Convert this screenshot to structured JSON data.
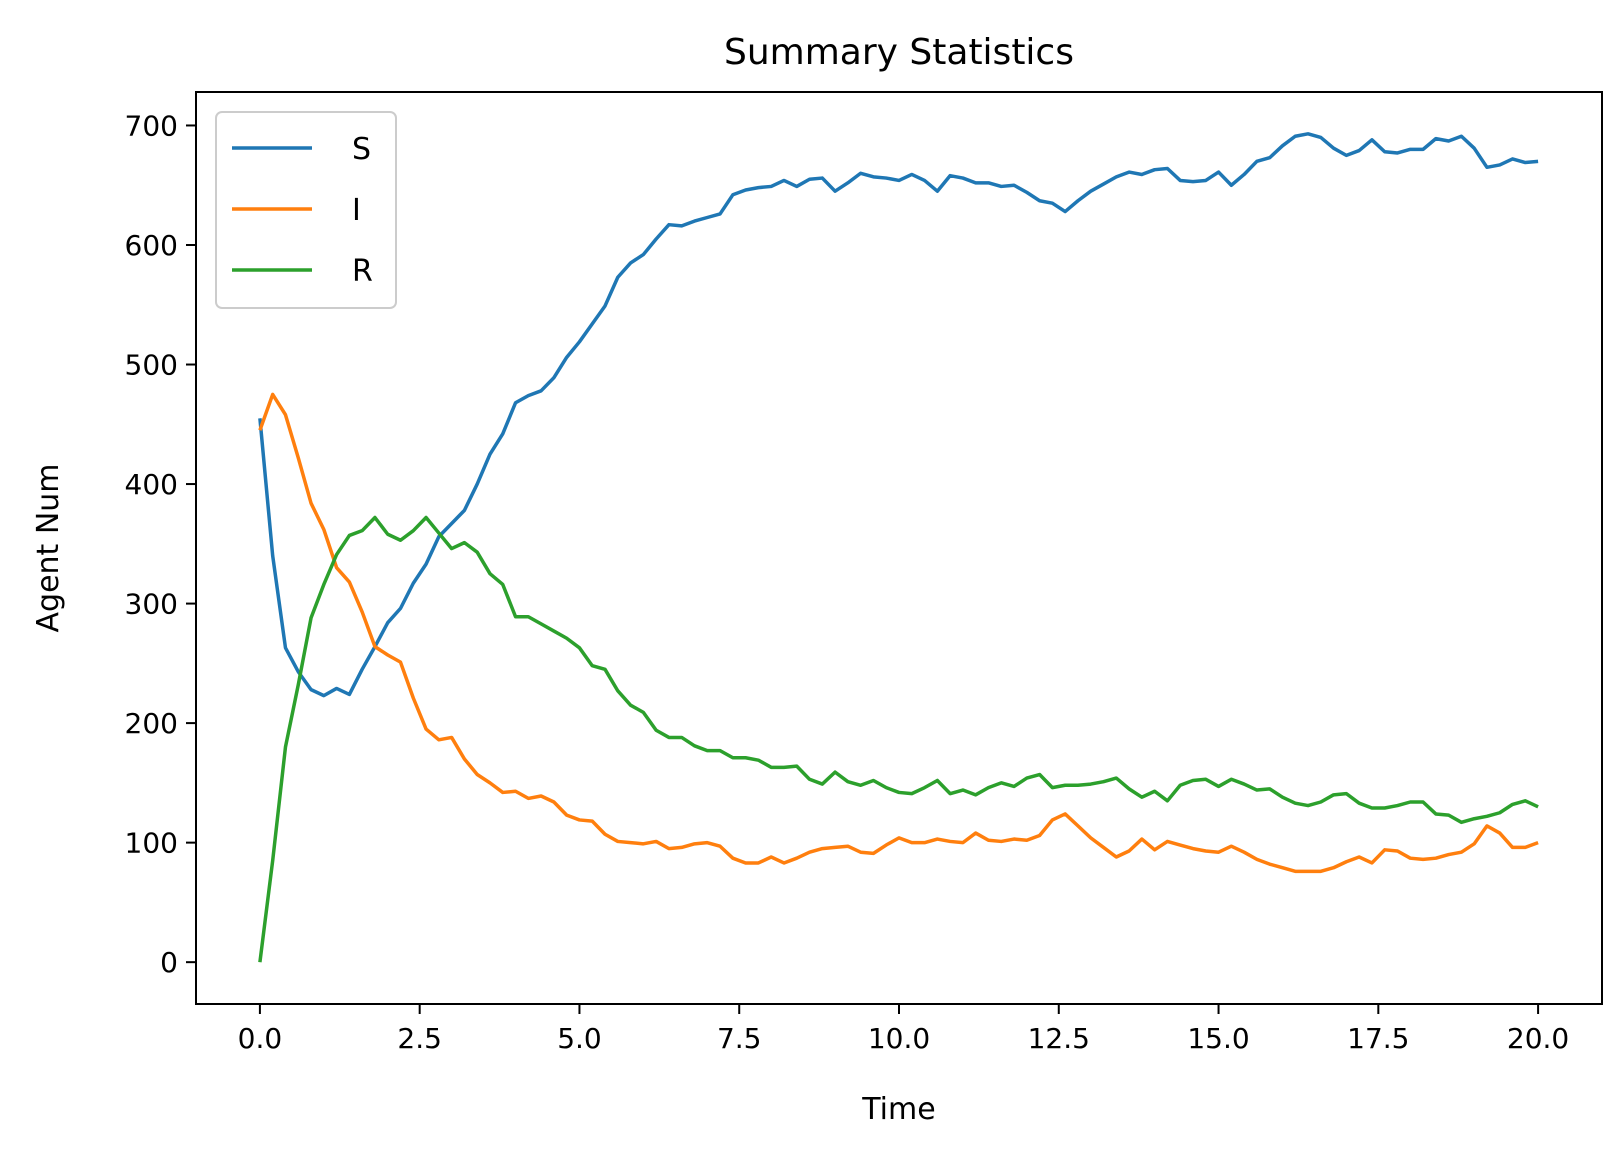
{
  "chart_data": {
    "type": "line",
    "title": "Summary Statistics",
    "xlabel": "Time",
    "ylabel": "Agent Num",
    "xlim": [
      -1.0,
      21.0
    ],
    "ylim": [
      -35,
      728
    ],
    "xticks": [
      0.0,
      2.5,
      5.0,
      7.5,
      10.0,
      12.5,
      15.0,
      17.5,
      20.0
    ],
    "xtick_labels": [
      "0.0",
      "2.5",
      "5.0",
      "7.5",
      "10.0",
      "12.5",
      "15.0",
      "17.5",
      "20.0"
    ],
    "yticks": [
      0,
      100,
      200,
      300,
      400,
      500,
      600,
      700
    ],
    "ytick_labels": [
      "0",
      "100",
      "200",
      "300",
      "400",
      "500",
      "600",
      "700"
    ],
    "grid": false,
    "legend": {
      "position": "upper-left",
      "entries": [
        "S",
        "I",
        "R"
      ]
    },
    "x": [
      0.0,
      0.2,
      0.4,
      0.6,
      0.8,
      1.0,
      1.2,
      1.4,
      1.6,
      1.8,
      2.0,
      2.2,
      2.4,
      2.6,
      2.8,
      3.0,
      3.2,
      3.4,
      3.6,
      3.8,
      4.0,
      4.2,
      4.4,
      4.6,
      4.8,
      5.0,
      5.2,
      5.4,
      5.6,
      5.8,
      6.0,
      6.2,
      6.4,
      6.6,
      6.8,
      7.0,
      7.2,
      7.4,
      7.6,
      7.8,
      8.0,
      8.2,
      8.4,
      8.6,
      8.8,
      9.0,
      9.2,
      9.4,
      9.6,
      9.8,
      10.0,
      10.2,
      10.4,
      10.6,
      10.8,
      11.0,
      11.2,
      11.4,
      11.6,
      11.8,
      12.0,
      12.2,
      12.4,
      12.6,
      12.8,
      13.0,
      13.2,
      13.4,
      13.6,
      13.8,
      14.0,
      14.2,
      14.4,
      14.6,
      14.8,
      15.0,
      15.2,
      15.4,
      15.6,
      15.8,
      16.0,
      16.2,
      16.4,
      16.6,
      16.8,
      17.0,
      17.2,
      17.4,
      17.6,
      17.8,
      18.0,
      18.2,
      18.4,
      18.6,
      18.8,
      19.0,
      19.2,
      19.4,
      19.6,
      19.8,
      20.0
    ],
    "series": [
      {
        "name": "S",
        "color": "#1f77b4",
        "values": [
          455,
          340,
          263,
          243,
          228,
          223,
          229,
          224,
          245,
          264,
          284,
          296,
          317,
          333,
          356,
          367,
          378,
          400,
          425,
          442,
          468,
          474,
          478,
          489,
          506,
          519,
          534,
          549,
          573,
          585,
          592,
          605,
          617,
          616,
          620,
          623,
          626,
          642,
          646,
          648,
          649,
          654,
          649,
          655,
          656,
          645,
          652,
          660,
          657,
          656,
          654,
          659,
          654,
          645,
          658,
          656,
          652,
          652,
          649,
          650,
          644,
          637,
          635,
          628,
          637,
          645,
          651,
          657,
          661,
          659,
          663,
          664,
          654,
          653,
          654,
          661,
          650,
          659,
          670,
          673,
          683,
          691,
          693,
          690,
          681,
          675,
          679,
          688,
          678,
          677,
          680,
          680,
          689,
          687,
          691,
          681,
          665,
          667,
          672,
          669,
          670
        ]
      },
      {
        "name": "I",
        "color": "#ff7f0e",
        "values": [
          445,
          475,
          458,
          422,
          384,
          362,
          330,
          318,
          293,
          264,
          257,
          251,
          221,
          195,
          186,
          188,
          170,
          157,
          150,
          142,
          143,
          137,
          139,
          134,
          123,
          119,
          118,
          107,
          101,
          100,
          99,
          101,
          95,
          96,
          99,
          100,
          97,
          87,
          83,
          83,
          88,
          83,
          87,
          92,
          95,
          96,
          97,
          92,
          91,
          98,
          104,
          100,
          100,
          103,
          101,
          100,
          108,
          102,
          101,
          103,
          102,
          106,
          119,
          124,
          114,
          104,
          96,
          88,
          93,
          103,
          94,
          101,
          98,
          95,
          93,
          92,
          97,
          92,
          86,
          82,
          79,
          76,
          76,
          76,
          79,
          84,
          88,
          83,
          94,
          93,
          87,
          86,
          87,
          90,
          92,
          99,
          114,
          108,
          96,
          96,
          100
        ]
      },
      {
        "name": "R",
        "color": "#2ca02c",
        "values": [
          0,
          85,
          180,
          232,
          288,
          316,
          341,
          357,
          361,
          372,
          358,
          353,
          361,
          372,
          359,
          346,
          351,
          343,
          325,
          316,
          289,
          289,
          283,
          277,
          271,
          263,
          248,
          245,
          227,
          215,
          209,
          194,
          188,
          188,
          181,
          177,
          177,
          171,
          171,
          169,
          163,
          163,
          164,
          153,
          149,
          159,
          151,
          148,
          152,
          146,
          142,
          141,
          146,
          152,
          141,
          144,
          140,
          146,
          150,
          147,
          154,
          157,
          146,
          148,
          148,
          149,
          151,
          154,
          145,
          138,
          143,
          135,
          148,
          152,
          153,
          147,
          153,
          149,
          144,
          145,
          138,
          133,
          131,
          134,
          140,
          141,
          133,
          129,
          129,
          131,
          134,
          134,
          124,
          123,
          117,
          120,
          122,
          125,
          132,
          135,
          130
        ]
      }
    ]
  }
}
